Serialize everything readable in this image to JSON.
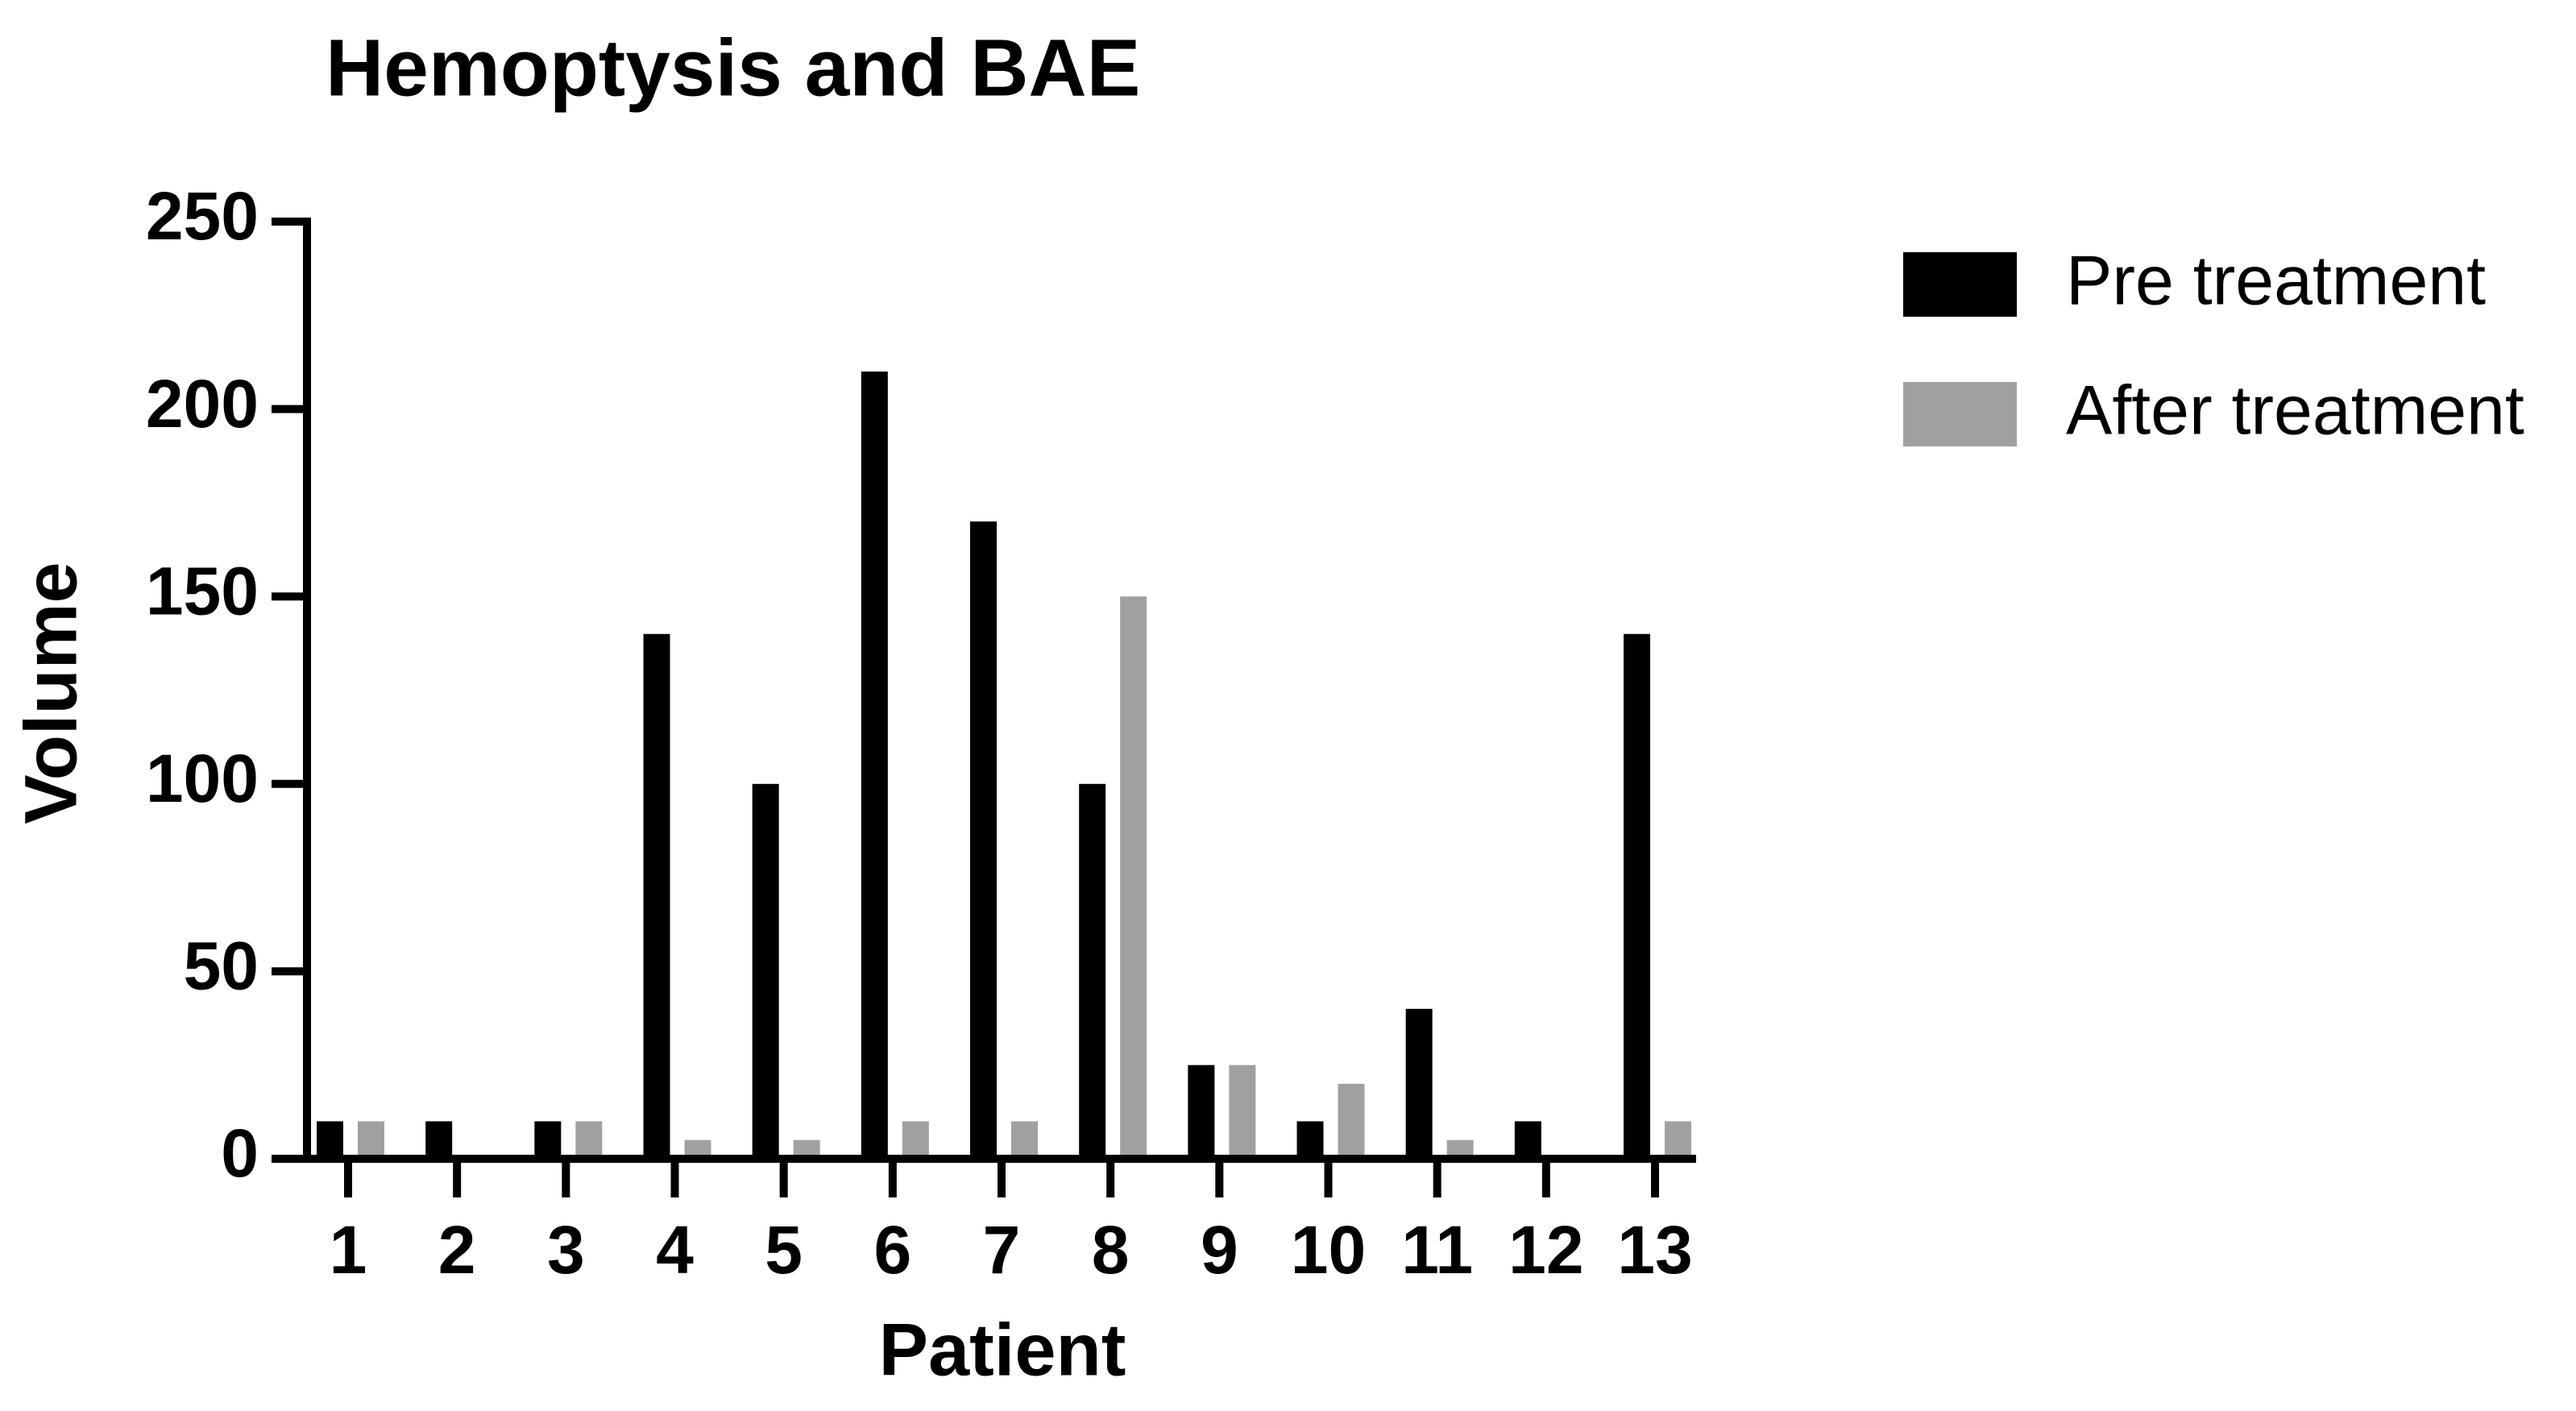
{
  "chart_data": {
    "type": "bar",
    "title": "Hemoptysis and BAE",
    "x_label": "Patient",
    "y_label": "Volume",
    "categories": [
      "1",
      "2",
      "3",
      "4",
      "5",
      "6",
      "7",
      "8",
      "9",
      "10",
      "11",
      "12",
      "13"
    ],
    "series": [
      {
        "name": "Pre treatment",
        "color": "#000000",
        "values": [
          10,
          10,
          10,
          140,
          100,
          210,
          170,
          100,
          25,
          10,
          40,
          10,
          140
        ]
      },
      {
        "name": "After treatment",
        "color": "#a0a0a3",
        "values": [
          10,
          0,
          10,
          5,
          5,
          10,
          10,
          150,
          25,
          20,
          5,
          0,
          10
        ]
      }
    ],
    "ylim": [
      0,
      250
    ],
    "yticks": [
      0,
      50,
      100,
      150,
      200,
      250
    ],
    "grid": false,
    "legend": "right"
  }
}
